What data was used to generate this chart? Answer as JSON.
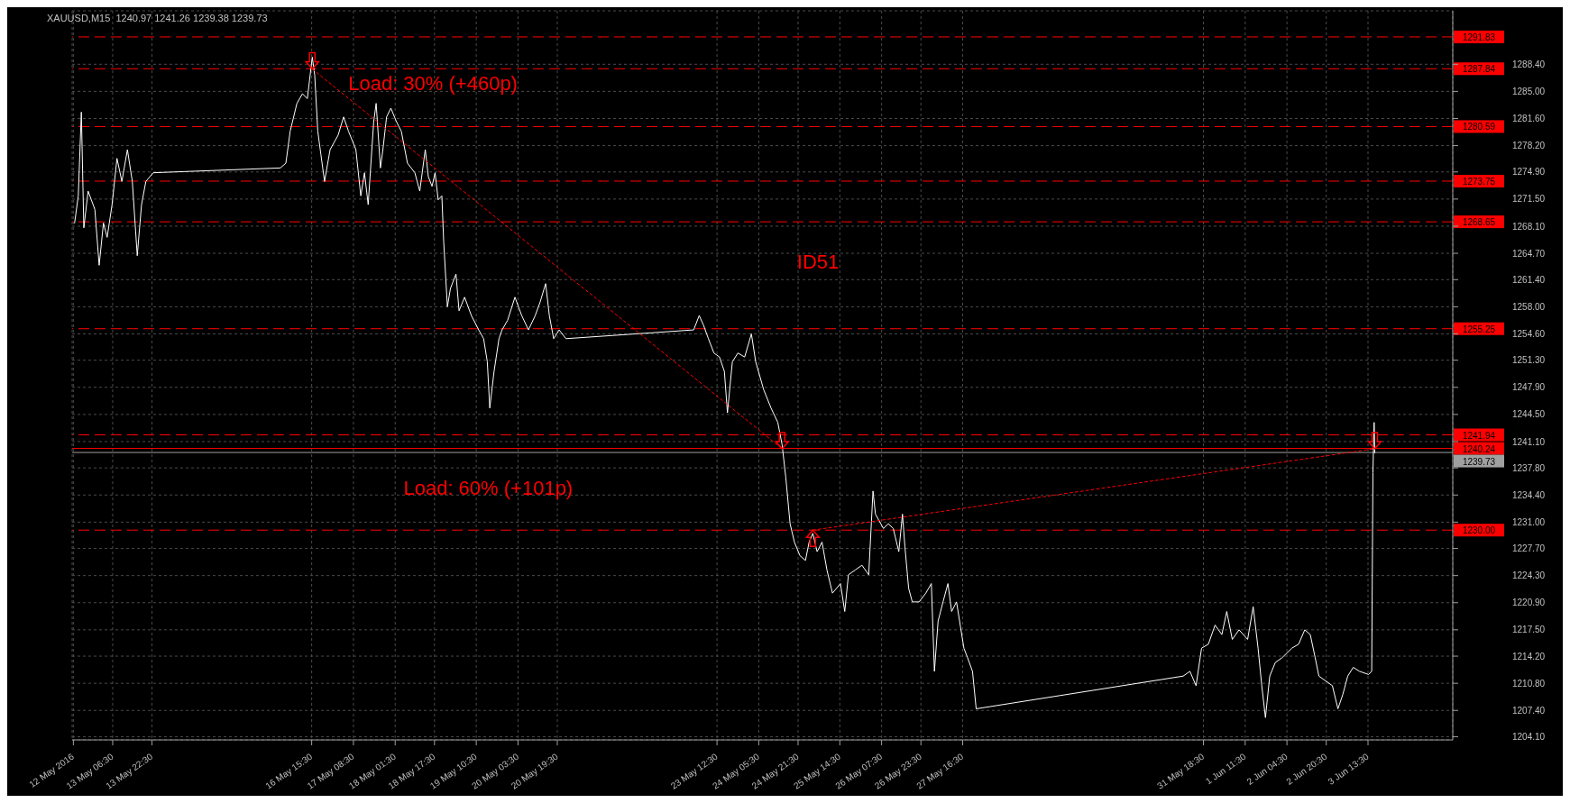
{
  "chart_data": {
    "type": "line",
    "title": "XAUUSD,M15  1240.97 1241.26 1239.38 1239.73",
    "series": [
      {
        "color": "#ffffff",
        "x": [
          "2016-05-12T15:00",
          "2016-05-12T16:30",
          "2016-05-12T17:45",
          "2016-05-12T18:45",
          "2016-05-12T20:30",
          "2016-05-12T23:15",
          "2016-05-13T01:00",
          "2016-05-13T02:45",
          "2016-05-13T04:15",
          "2016-05-13T06:15",
          "2016-05-13T08:15",
          "2016-05-13T10:15",
          "2016-05-13T12:30",
          "2016-05-13T14:30",
          "2016-05-13T16:30",
          "2016-05-13T18:15",
          "2016-05-13T20:00",
          "2016-05-13T23:00",
          "2016-05-16T02:45",
          "2016-05-16T05:00",
          "2016-05-16T06:45",
          "2016-05-16T09:30",
          "2016-05-16T11:45",
          "2016-05-16T13:45",
          "2016-05-16T15:45",
          "2016-05-16T16:45",
          "2016-05-16T18:00",
          "2016-05-16T19:15",
          "2016-05-16T20:45",
          "2016-05-16T23:00",
          "2016-05-17T02:15",
          "2016-05-17T04:30",
          "2016-05-17T06:30",
          "2016-05-17T09:30",
          "2016-05-17T11:30",
          "2016-05-17T13:00",
          "2016-05-17T14:30",
          "2016-05-17T16:45",
          "2016-05-17T17:45",
          "2016-05-17T19:30",
          "2016-05-17T20:30",
          "2016-05-17T22:00",
          "2016-05-17T23:45",
          "2016-05-18T02:00",
          "2016-05-18T04:00",
          "2016-05-18T06:30",
          "2016-05-18T09:30",
          "2016-05-18T11:30",
          "2016-05-18T13:45",
          "2016-05-18T15:00",
          "2016-05-18T16:30",
          "2016-05-18T17:45",
          "2016-05-18T19:00",
          "2016-05-18T20:30",
          "2016-05-18T21:15",
          "2016-05-18T22:45",
          "2016-05-19T00:00",
          "2016-05-19T02:15",
          "2016-05-19T03:30",
          "2016-05-19T05:45",
          "2016-05-19T08:30",
          "2016-05-19T11:30",
          "2016-05-19T13:30",
          "2016-05-19T15:00",
          "2016-05-19T16:00",
          "2016-05-19T17:45",
          "2016-05-19T19:45",
          "2016-05-19T21:00",
          "2016-05-19T23:15",
          "2016-05-20T02:15",
          "2016-05-20T05:00",
          "2016-05-20T07:45",
          "2016-05-20T10:30",
          "2016-05-20T12:30",
          "2016-05-20T14:45",
          "2016-05-20T16:15",
          "2016-05-20T18:00",
          "2016-05-20T20:15",
          "2016-05-20T23:00",
          "2016-05-23T03:00",
          "2016-05-23T05:15",
          "2016-05-23T07:00",
          "2016-05-23T09:00",
          "2016-05-23T11:15",
          "2016-05-23T13:30",
          "2016-05-23T15:30",
          "2016-05-23T16:45",
          "2016-05-23T18:45",
          "2016-05-23T21:00",
          "2016-05-23T23:45",
          "2016-05-24T02:30",
          "2016-05-24T04:15",
          "2016-05-24T07:30",
          "2016-05-24T10:30",
          "2016-05-24T13:15",
          "2016-05-24T15:00",
          "2016-05-24T16:30",
          "2016-05-24T18:15",
          "2016-05-24T20:00",
          "2016-05-24T22:15",
          "2016-05-25T00:30",
          "2016-05-25T02:00",
          "2016-05-25T03:30",
          "2016-05-25T05:15",
          "2016-05-25T07:15",
          "2016-05-25T09:15",
          "2016-05-25T11:30",
          "2016-05-25T14:45",
          "2016-05-25T16:30",
          "2016-05-25T18:00",
          "2016-05-25T20:45",
          "2016-05-25T23:30",
          "2016-05-26T02:15",
          "2016-05-26T04:00",
          "2016-05-26T05:00",
          "2016-05-26T08:15",
          "2016-05-26T10:15",
          "2016-05-26T12:15",
          "2016-05-26T14:30",
          "2016-05-26T16:00",
          "2016-05-26T17:00",
          "2016-05-26T18:30",
          "2016-05-26T20:00",
          "2016-05-26T22:45",
          "2016-05-27T01:30",
          "2016-05-27T03:45",
          "2016-05-27T05:00",
          "2016-05-27T06:30",
          "2016-05-27T08:30",
          "2016-05-27T10:30",
          "2016-05-27T12:00",
          "2016-05-27T14:00",
          "2016-05-27T17:00",
          "2016-05-27T18:30",
          "2016-05-27T20:30",
          "2016-05-27T22:00",
          "2016-05-31T10:15",
          "2016-05-31T13:00",
          "2016-05-31T15:30",
          "2016-05-31T17:45",
          "2016-05-31T20:30",
          "2016-05-31T23:15",
          "2016-06-01T02:00",
          "2016-06-01T04:00",
          "2016-06-01T06:15",
          "2016-06-01T09:00",
          "2016-06-01T12:30",
          "2016-06-01T14:45",
          "2016-06-01T16:45",
          "2016-06-01T18:15",
          "2016-06-01T19:45",
          "2016-06-01T21:30",
          "2016-06-01T23:45",
          "2016-06-02T02:30",
          "2016-06-02T06:30",
          "2016-06-02T09:15",
          "2016-06-02T11:45",
          "2016-06-02T14:00",
          "2016-06-02T16:00",
          "2016-06-02T17:30",
          "2016-06-02T20:15",
          "2016-06-02T23:00",
          "2016-06-03T01:15",
          "2016-06-03T03:15",
          "2016-06-03T05:15",
          "2016-06-03T07:30",
          "2016-06-03T10:00",
          "2016-06-03T13:45",
          "2016-06-03T15:00",
          "2016-06-03T15:30",
          "2016-06-03T15:45",
          "2016-06-03T16:00",
          "2016-06-03T16:15"
        ],
        "values": [
          1268.5,
          1271.9,
          1282.4,
          1267.9,
          1272.5,
          1270.2,
          1263.2,
          1268.5,
          1266.7,
          1270.8,
          1276.6,
          1273.7,
          1277.7,
          1273.7,
          1264.4,
          1270.8,
          1273.7,
          1274.8,
          1275.4,
          1276.0,
          1280.0,
          1283.5,
          1284.7,
          1284.1,
          1289.3,
          1287.0,
          1280.0,
          1277.1,
          1273.7,
          1277.7,
          1279.5,
          1281.8,
          1280.0,
          1277.7,
          1271.9,
          1274.8,
          1270.8,
          1281.2,
          1283.5,
          1275.4,
          1277.7,
          1281.8,
          1282.9,
          1281.2,
          1280.0,
          1276.0,
          1274.8,
          1272.5,
          1277.7,
          1274.3,
          1273.1,
          1274.8,
          1271.4,
          1271.9,
          1266.1,
          1258.0,
          1260.3,
          1262.1,
          1257.5,
          1259.2,
          1256.9,
          1255.1,
          1254.0,
          1251.1,
          1245.3,
          1249.9,
          1254.0,
          1255.1,
          1256.3,
          1259.2,
          1256.9,
          1255.1,
          1256.9,
          1258.6,
          1260.9,
          1256.9,
          1254.0,
          1255.1,
          1254.0,
          1255.1,
          1256.9,
          1255.7,
          1254.0,
          1252.2,
          1251.7,
          1249.9,
          1244.7,
          1251.1,
          1252.2,
          1251.7,
          1254.6,
          1251.1,
          1247.6,
          1245.3,
          1243.5,
          1240.7,
          1236.6,
          1230.8,
          1228.5,
          1226.8,
          1226.2,
          1228.5,
          1229.6,
          1227.3,
          1228.5,
          1225.0,
          1222.1,
          1223.3,
          1219.8,
          1224.4,
          1225.0,
          1225.6,
          1224.4,
          1234.9,
          1232.0,
          1230.2,
          1230.8,
          1230.2,
          1227.3,
          1232.0,
          1227.9,
          1222.7,
          1221.0,
          1221.0,
          1222.1,
          1223.3,
          1212.3,
          1218.6,
          1221.0,
          1223.3,
          1219.8,
          1221.0,
          1215.2,
          1214.0,
          1212.3,
          1207.6,
          1211.7,
          1212.3,
          1210.5,
          1215.2,
          1215.7,
          1218.1,
          1216.9,
          1219.8,
          1216.3,
          1217.5,
          1216.3,
          1220.4,
          1215.2,
          1210.5,
          1206.5,
          1211.7,
          1213.4,
          1214.0,
          1215.2,
          1215.7,
          1217.5,
          1216.9,
          1214.0,
          1211.7,
          1211.1,
          1210.5,
          1207.6,
          1209.4,
          1211.7,
          1212.8,
          1212.3,
          1211.9,
          1212.3,
          1237.2,
          1240.7,
          1243.5,
          1239.7
        ]
      },
      {
        "color": "#ff0000",
        "line_style": "dotted",
        "x": [
          "2016-05-16T15:45",
          "2016-05-24T15:00"
        ],
        "values": [
          1287.8,
          1240.2
        ]
      },
      {
        "color": "#ff0000",
        "line_style": "dotted",
        "x": [
          "2016-05-25T03:30",
          "2016-06-03T16:15"
        ],
        "values": [
          1230.0,
          1240.2
        ]
      }
    ],
    "xlim": [
      "2016-05-12T14:00",
      "2016-06-05T00:00"
    ],
    "xticks": [
      {
        "value": "2016-05-12T14:30",
        "label": "12 May 2016"
      },
      {
        "value": "2016-05-13T06:30",
        "label": "13 May 06:30"
      },
      {
        "value": "2016-05-13T22:30",
        "label": "13 May 22:30"
      },
      {
        "value": "2016-05-16T15:30",
        "label": "16 May 15:30"
      },
      {
        "value": "2016-05-17T08:30",
        "label": "17 May 08:30"
      },
      {
        "value": "2016-05-18T01:30",
        "label": "18 May 01:30"
      },
      {
        "value": "2016-05-18T17:30",
        "label": "18 May 17:30"
      },
      {
        "value": "2016-05-19T10:30",
        "label": "19 May 10:30"
      },
      {
        "value": "2016-05-20T03:30",
        "label": "20 May 03:30"
      },
      {
        "value": "2016-05-20T19:30",
        "label": "20 May 19:30"
      },
      {
        "value": "2016-05-23T12:30",
        "label": "23 May 12:30"
      },
      {
        "value": "2016-05-24T05:30",
        "label": "24 May 05:30"
      },
      {
        "value": "2016-05-24T21:30",
        "label": "24 May 21:30"
      },
      {
        "value": "2016-05-25T14:30",
        "label": "25 May 14:30"
      },
      {
        "value": "2016-05-26T07:30",
        "label": "26 May 07:30"
      },
      {
        "value": "2016-05-26T23:30",
        "label": "26 May 23:30"
      },
      {
        "value": "2016-05-27T16:30",
        "label": "27 May 16:30"
      },
      {
        "value": "2016-05-31T18:30",
        "label": "31 May 18:30"
      },
      {
        "value": "2016-06-01T11:30",
        "label": "1 Jun 11:30"
      },
      {
        "value": "2016-06-02T04:30",
        "label": "2 Jun 04:30"
      },
      {
        "value": "2016-06-02T20:30",
        "label": "2 Jun 20:30"
      },
      {
        "value": "2016-06-03T13:30",
        "label": "3 Jun 13:30"
      }
    ],
    "ylim": [
      1203.7,
      1295.1
    ],
    "yticks": [
      {
        "value": 1204.1,
        "label": "1204.10"
      },
      {
        "value": 1207.4,
        "label": "1207.40"
      },
      {
        "value": 1210.8,
        "label": "1210.80"
      },
      {
        "value": 1214.2,
        "label": "1214.20"
      },
      {
        "value": 1217.5,
        "label": "1217.50"
      },
      {
        "value": 1220.9,
        "label": "1220.90"
      },
      {
        "value": 1224.3,
        "label": "1224.30"
      },
      {
        "value": 1227.7,
        "label": "1227.70"
      },
      {
        "value": 1231.0,
        "label": "1231.00"
      },
      {
        "value": 1234.4,
        "label": "1234.40"
      },
      {
        "value": 1237.8,
        "label": "1237.80"
      },
      {
        "value": 1241.1,
        "label": "1241.10"
      },
      {
        "value": 1244.5,
        "label": "1244.50"
      },
      {
        "value": 1247.9,
        "label": "1247.90"
      },
      {
        "value": 1251.3,
        "label": "1251.30"
      },
      {
        "value": 1254.6,
        "label": "1254.60"
      },
      {
        "value": 1258.0,
        "label": "1258.00"
      },
      {
        "value": 1261.4,
        "label": "1261.40"
      },
      {
        "value": 1264.7,
        "label": "1264.70"
      },
      {
        "value": 1268.1,
        "label": "1268.10"
      },
      {
        "value": 1271.5,
        "label": "1271.50"
      },
      {
        "value": 1274.9,
        "label": "1274.90"
      },
      {
        "value": 1278.2,
        "label": "1278.20"
      },
      {
        "value": 1281.6,
        "label": "1281.60"
      },
      {
        "value": 1285.0,
        "label": "1285.00"
      },
      {
        "value": 1288.4,
        "label": "1288.40"
      }
    ],
    "ref_lines": [
      {
        "axis": "y",
        "value": 1291.83,
        "label": "1291.83",
        "color": "#ff0000",
        "line_style": "dashed"
      },
      {
        "axis": "y",
        "value": 1287.84,
        "label": "1287.84",
        "color": "#ff0000",
        "line_style": "dashed"
      },
      {
        "axis": "y",
        "value": 1280.59,
        "label": "1280.59",
        "color": "#ff0000",
        "line_style": "dashed"
      },
      {
        "axis": "y",
        "value": 1273.75,
        "label": "1273.75",
        "color": "#ff0000",
        "line_style": "dashed"
      },
      {
        "axis": "y",
        "value": 1268.65,
        "label": "1268.65",
        "color": "#ff0000",
        "line_style": "dashed"
      },
      {
        "axis": "y",
        "value": 1255.25,
        "label": "1255.25",
        "color": "#ff0000",
        "line_style": "dashed"
      },
      {
        "axis": "y",
        "value": 1241.94,
        "label": "1241.94",
        "color": "#ff0000",
        "line_style": "dashed"
      },
      {
        "axis": "y",
        "value": 1240.24,
        "label": "1240.24",
        "color": "#ff0000",
        "line_style": "solid"
      },
      {
        "axis": "y",
        "value": 1239.73,
        "label": "1239.73",
        "color": "#a0a0a0",
        "line_style": "solid"
      },
      {
        "axis": "y",
        "value": 1230.0,
        "label": "1230.00",
        "color": "#ff0000",
        "line_style": "dashed"
      }
    ],
    "annotations": [
      "Load: 30% (+460p)",
      "Load: 60% (+101p)",
      "ID51"
    ],
    "grid": true,
    "marker": "none",
    "line_style": "solid"
  }
}
